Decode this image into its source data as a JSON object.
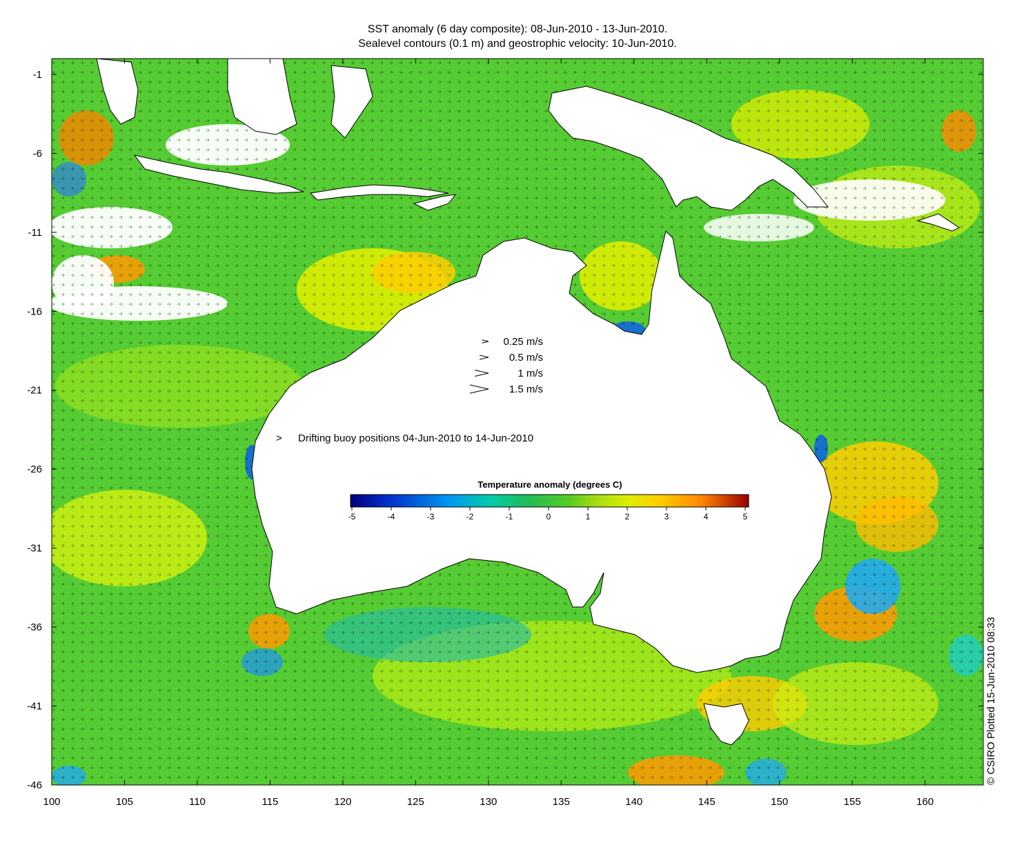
{
  "title_line1": "SST anomaly (6 day composite): 08-Jun-2010 - 13-Jun-2010.",
  "title_line2": "Sealevel contours (0.1 m) and geostrophic velocity: 10-Jun-2010.",
  "x_axis": {
    "ticks": [
      "100",
      "105",
      "110",
      "115",
      "120",
      "125",
      "130",
      "135",
      "140",
      "145",
      "150",
      "155",
      "160"
    ],
    "range": [
      100,
      164
    ]
  },
  "y_axis": {
    "ticks": [
      "-1",
      "-6",
      "-11",
      "-16",
      "-21",
      "-26",
      "-31",
      "-36",
      "-41",
      "-46"
    ],
    "range": [
      -46,
      0
    ]
  },
  "velocity_legend": {
    "items": [
      {
        "label": "0.25 m/s",
        "speed": 0.25
      },
      {
        "label": "0.5 m/s",
        "speed": 0.5
      },
      {
        "label": "1 m/s",
        "speed": 1
      },
      {
        "label": "1.5 m/s",
        "speed": 1.5
      }
    ]
  },
  "buoy_legend": {
    "symbol": ">",
    "label": "Drifting buoy positions 04-Jun-2010 to 14-Jun-2010",
    "color": "#cc33cc"
  },
  "colorbar": {
    "title": "Temperature anomaly (degrees C)",
    "ticks": [
      "-5",
      "-4",
      "-3",
      "-2",
      "-1",
      "0",
      "1",
      "2",
      "3",
      "4",
      "5"
    ],
    "range": [
      -5,
      5
    ],
    "colors": [
      "#00007f",
      "#0033cc",
      "#0099ee",
      "#00ccaa",
      "#22bb55",
      "#33cc22",
      "#88dd11",
      "#ddee00",
      "#ffcc00",
      "#ff9900",
      "#dd5500",
      "#990000"
    ]
  },
  "credit": "© CSIRO Plotted 15-Jun-2010 08:33",
  "colors": {
    "ocean_base": "#55cc33",
    "land": "#ffffff",
    "arrow": "#000000"
  }
}
